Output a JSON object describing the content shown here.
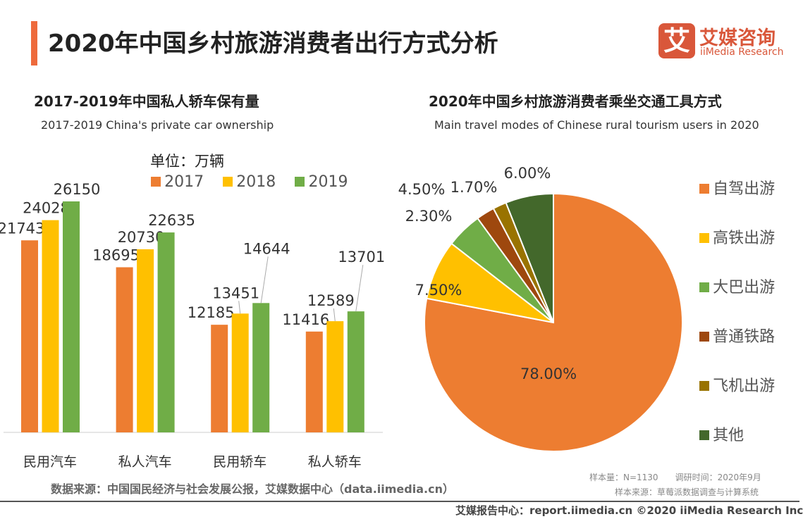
{
  "header": {
    "title": "2020年中国乡村旅游消费者出行方式分析",
    "logo_mark": "艾",
    "logo_cn": "艾媒咨询",
    "logo_en": "iiMedia Research"
  },
  "colors": {
    "accent": "#EE6A3C",
    "2017": "#ED7D31",
    "2018": "#FFC000",
    "2019": "#70AD47"
  },
  "chart_data": [
    {
      "type": "bar",
      "title": "2017-2019年中国私人轿车保有量",
      "subtitle": "2017-2019 China's private car ownership",
      "unit_label": "单位：万辆",
      "categories": [
        "民用汽车",
        "私人汽车",
        "民用轿车",
        "私人轿车"
      ],
      "series": [
        {
          "name": "2017",
          "color": "#ED7D31",
          "values": [
            21743,
            18695,
            12185,
            11416
          ]
        },
        {
          "name": "2018",
          "color": "#FFC000",
          "values": [
            24028,
            20730,
            13451,
            12589
          ]
        },
        {
          "name": "2019",
          "color": "#70AD47",
          "values": [
            26150,
            22635,
            14644,
            13701
          ]
        }
      ],
      "legend": "top",
      "grid": false
    },
    {
      "type": "pie",
      "title": "2020年中国乡村旅游消费者乘坐交通工具方式",
      "subtitle": "Main travel modes of Chinese rural tourism users in 2020",
      "slices": [
        {
          "name": "自驾出游",
          "value": 78.0,
          "label": "78.00%",
          "color": "#ED7D31"
        },
        {
          "name": "高铁出游",
          "value": 7.5,
          "label": "7.50%",
          "color": "#FFC000"
        },
        {
          "name": "大巴出游",
          "value": 4.5,
          "label": "4.50%",
          "color": "#70AD47"
        },
        {
          "name": "普通铁路",
          "value": 2.3,
          "label": "2.30%",
          "color": "#9E480E"
        },
        {
          "name": "飞机出游",
          "value": 1.7,
          "label": "1.70%",
          "color": "#997300"
        },
        {
          "name": "其他",
          "value": 6.0,
          "label": "6.00%",
          "color": "#43682B"
        }
      ],
      "legend": "right"
    }
  ],
  "footer": {
    "source": "数据来源：中国国民经济与社会发展公报，艾媒数据中心（data.iimedia.cn）",
    "sample": "样本量：N=1130　　调研时间：2020年9月",
    "sample_source": "样本来源：草莓派数据调查与计算系统",
    "copyright": "艾媒报告中心：report.iimedia.cn  ©2020  iiMedia Research  Inc"
  }
}
